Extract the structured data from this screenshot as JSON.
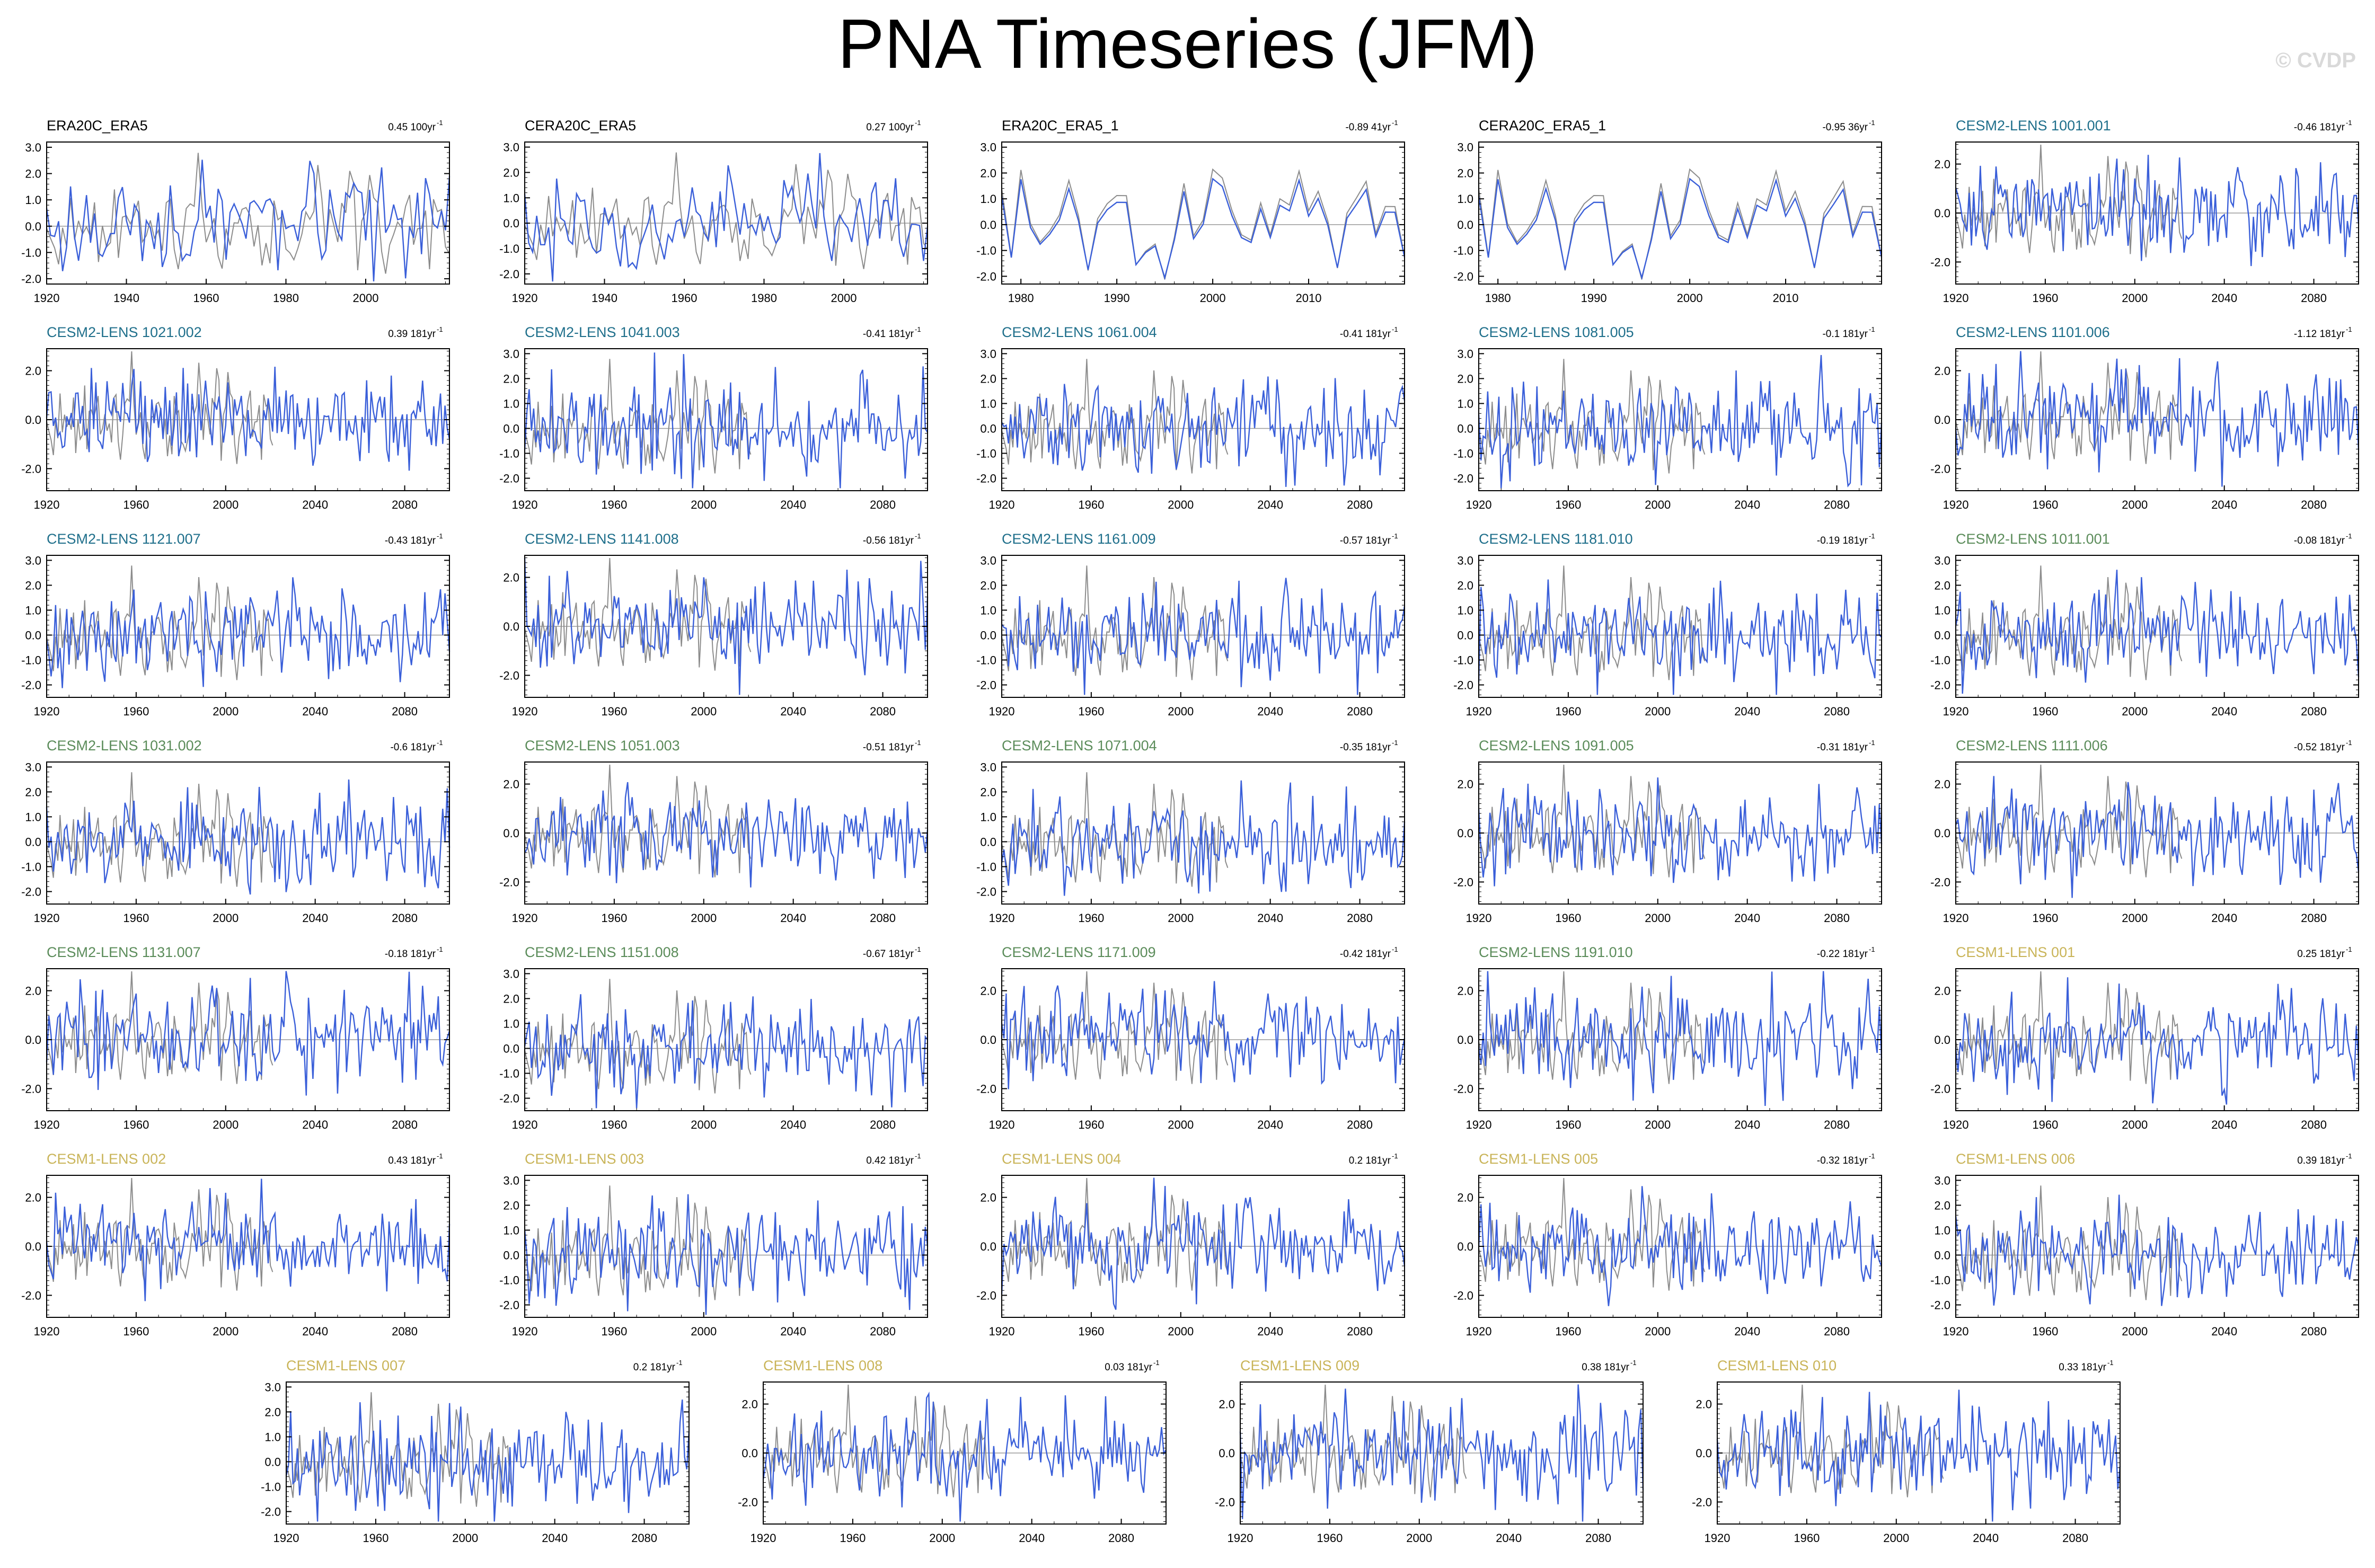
{
  "title": "PNA Timeseries (JFM)",
  "watermark": "© CVDP",
  "colors": {
    "observed": "#8c8c8c",
    "model": "#3a5fd9",
    "axis": "#000000",
    "zero_line": "#999999"
  },
  "chart_data": [
    {
      "type": "line",
      "title": "ERA20C_ERA5",
      "trend": "0.45 100yr",
      "title_color": "#000000",
      "xlim": [
        1920,
        2021
      ],
      "ylim": [
        -2.2,
        3.2
      ],
      "yticks": [
        -2.0,
        -1.0,
        0.0,
        1.0,
        2.0,
        3.0
      ],
      "xticks": [
        1920,
        1940,
        1960,
        1980,
        2000
      ],
      "series": []
    },
    {
      "type": "line",
      "title": "CERA20C_ERA5",
      "trend": "0.27 100yr",
      "title_color": "#000000",
      "xlim": [
        1920,
        2021
      ],
      "ylim": [
        -2.4,
        3.2
      ],
      "yticks": [
        -2.0,
        -1.0,
        0.0,
        1.0,
        2.0,
        3.0
      ],
      "xticks": [
        1920,
        1940,
        1960,
        1980,
        2000
      ],
      "series": []
    },
    {
      "type": "line",
      "title": "ERA20C_ERA5_1",
      "trend": "-0.89 41yr",
      "title_color": "#000000",
      "xlim": [
        1978,
        2020
      ],
      "ylim": [
        -2.3,
        3.2
      ],
      "yticks": [
        -2.0,
        -1.0,
        0.0,
        1.0,
        2.0,
        3.0
      ],
      "xticks": [
        1980,
        1990,
        2000,
        2010
      ],
      "series": []
    },
    {
      "type": "line",
      "title": "CERA20C_ERA5_1",
      "trend": "-0.95 36yr",
      "title_color": "#000000",
      "xlim": [
        1978,
        2020
      ],
      "ylim": [
        -2.3,
        3.2
      ],
      "yticks": [
        -2.0,
        -1.0,
        0.0,
        1.0,
        2.0,
        3.0
      ],
      "xticks": [
        1980,
        1990,
        2000,
        2010
      ],
      "series": []
    },
    {
      "type": "line",
      "title": "CESM2-LENS 1001.001",
      "trend": "-0.46 181yr",
      "title_color": "#1f6f8b",
      "xlim": [
        1920,
        2100
      ],
      "ylim": [
        -2.9,
        2.9
      ],
      "yticks": [
        -2.0,
        0.0,
        2.0
      ],
      "xticks": [
        1920,
        1960,
        2000,
        2040,
        2080
      ],
      "series": []
    },
    {
      "type": "line",
      "title": "CESM2-LENS 1021.002",
      "trend": "0.39 181yr",
      "title_color": "#1f6f8b",
      "xlim": [
        1920,
        2100
      ],
      "ylim": [
        -2.9,
        2.9
      ],
      "yticks": [
        -2.0,
        0.0,
        2.0
      ],
      "xticks": [
        1920,
        1960,
        2000,
        2040,
        2080
      ],
      "series": []
    },
    {
      "type": "line",
      "title": "CESM2-LENS 1041.003",
      "trend": "-0.41 181yr",
      "title_color": "#1f6f8b",
      "xlim": [
        1920,
        2100
      ],
      "ylim": [
        -2.5,
        3.2
      ],
      "yticks": [
        -2.0,
        -1.0,
        0.0,
        1.0,
        2.0,
        3.0
      ],
      "xticks": [
        1920,
        1960,
        2000,
        2040,
        2080
      ],
      "series": []
    },
    {
      "type": "line",
      "title": "CESM2-LENS 1061.004",
      "trend": "-0.41 181yr",
      "title_color": "#1f6f8b",
      "xlim": [
        1920,
        2100
      ],
      "ylim": [
        -2.5,
        3.2
      ],
      "yticks": [
        -2.0,
        -1.0,
        0.0,
        1.0,
        2.0,
        3.0
      ],
      "xticks": [
        1920,
        1960,
        2000,
        2040,
        2080
      ],
      "series": []
    },
    {
      "type": "line",
      "title": "CESM2-LENS 1081.005",
      "trend": "-0.1 181yr",
      "title_color": "#1f6f8b",
      "xlim": [
        1920,
        2100
      ],
      "ylim": [
        -2.5,
        3.2
      ],
      "yticks": [
        -2.0,
        -1.0,
        0.0,
        1.0,
        2.0,
        3.0
      ],
      "xticks": [
        1920,
        1960,
        2000,
        2040,
        2080
      ],
      "series": []
    },
    {
      "type": "line",
      "title": "CESM2-LENS 1101.006",
      "trend": "-1.12 181yr",
      "title_color": "#1f6f8b",
      "xlim": [
        1920,
        2100
      ],
      "ylim": [
        -2.9,
        2.9
      ],
      "yticks": [
        -2.0,
        0.0,
        2.0
      ],
      "xticks": [
        1920,
        1960,
        2000,
        2040,
        2080
      ],
      "series": []
    },
    {
      "type": "line",
      "title": "CESM2-LENS 1121.007",
      "trend": "-0.43 181yr",
      "title_color": "#1f6f8b",
      "xlim": [
        1920,
        2100
      ],
      "ylim": [
        -2.5,
        3.2
      ],
      "yticks": [
        -2.0,
        -1.0,
        0.0,
        1.0,
        2.0,
        3.0
      ],
      "xticks": [
        1920,
        1960,
        2000,
        2040,
        2080
      ],
      "series": []
    },
    {
      "type": "line",
      "title": "CESM2-LENS 1141.008",
      "trend": "-0.56 181yr",
      "title_color": "#1f6f8b",
      "xlim": [
        1920,
        2100
      ],
      "ylim": [
        -2.9,
        2.9
      ],
      "yticks": [
        -2.0,
        0.0,
        2.0
      ],
      "xticks": [
        1920,
        1960,
        2000,
        2040,
        2080
      ],
      "series": []
    },
    {
      "type": "line",
      "title": "CESM2-LENS 1161.009",
      "trend": "-0.57 181yr",
      "title_color": "#1f6f8b",
      "xlim": [
        1920,
        2100
      ],
      "ylim": [
        -2.5,
        3.2
      ],
      "yticks": [
        -2.0,
        -1.0,
        0.0,
        1.0,
        2.0,
        3.0
      ],
      "xticks": [
        1920,
        1960,
        2000,
        2040,
        2080
      ],
      "series": []
    },
    {
      "type": "line",
      "title": "CESM2-LENS 1181.010",
      "trend": "-0.19 181yr",
      "title_color": "#1f6f8b",
      "xlim": [
        1920,
        2100
      ],
      "ylim": [
        -2.5,
        3.2
      ],
      "yticks": [
        -2.0,
        -1.0,
        0.0,
        1.0,
        2.0,
        3.0
      ],
      "xticks": [
        1920,
        1960,
        2000,
        2040,
        2080
      ],
      "series": []
    },
    {
      "type": "line",
      "title": "CESM2-LENS 1011.001",
      "trend": "-0.08 181yr",
      "title_color": "#5b8c5a",
      "xlim": [
        1920,
        2100
      ],
      "ylim": [
        -2.5,
        3.2
      ],
      "yticks": [
        -2.0,
        -1.0,
        0.0,
        1.0,
        2.0,
        3.0
      ],
      "xticks": [
        1920,
        1960,
        2000,
        2040,
        2080
      ],
      "series": []
    },
    {
      "type": "line",
      "title": "CESM2-LENS 1031.002",
      "trend": "-0.6 181yr",
      "title_color": "#5b8c5a",
      "xlim": [
        1920,
        2100
      ],
      "ylim": [
        -2.5,
        3.2
      ],
      "yticks": [
        -2.0,
        -1.0,
        0.0,
        1.0,
        2.0,
        3.0
      ],
      "xticks": [
        1920,
        1960,
        2000,
        2040,
        2080
      ],
      "series": []
    },
    {
      "type": "line",
      "title": "CESM2-LENS 1051.003",
      "trend": "-0.51 181yr",
      "title_color": "#5b8c5a",
      "xlim": [
        1920,
        2100
      ],
      "ylim": [
        -2.9,
        2.9
      ],
      "yticks": [
        -2.0,
        0.0,
        2.0
      ],
      "xticks": [
        1920,
        1960,
        2000,
        2040,
        2080
      ],
      "series": []
    },
    {
      "type": "line",
      "title": "CESM2-LENS 1071.004",
      "trend": "-0.35 181yr",
      "title_color": "#5b8c5a",
      "xlim": [
        1920,
        2100
      ],
      "ylim": [
        -2.5,
        3.2
      ],
      "yticks": [
        -2.0,
        -1.0,
        0.0,
        1.0,
        2.0,
        3.0
      ],
      "xticks": [
        1920,
        1960,
        2000,
        2040,
        2080
      ],
      "series": []
    },
    {
      "type": "line",
      "title": "CESM2-LENS 1091.005",
      "trend": "-0.31 181yr",
      "title_color": "#5b8c5a",
      "xlim": [
        1920,
        2100
      ],
      "ylim": [
        -2.9,
        2.9
      ],
      "yticks": [
        -2.0,
        0.0,
        2.0
      ],
      "xticks": [
        1920,
        1960,
        2000,
        2040,
        2080
      ],
      "series": []
    },
    {
      "type": "line",
      "title": "CESM2-LENS 1111.006",
      "trend": "-0.52 181yr",
      "title_color": "#5b8c5a",
      "xlim": [
        1920,
        2100
      ],
      "ylim": [
        -2.9,
        2.9
      ],
      "yticks": [
        -2.0,
        0.0,
        2.0
      ],
      "xticks": [
        1920,
        1960,
        2000,
        2040,
        2080
      ],
      "series": []
    },
    {
      "type": "line",
      "title": "CESM2-LENS 1131.007",
      "trend": "-0.18 181yr",
      "title_color": "#5b8c5a",
      "xlim": [
        1920,
        2100
      ],
      "ylim": [
        -2.9,
        2.9
      ],
      "yticks": [
        -2.0,
        0.0,
        2.0
      ],
      "xticks": [
        1920,
        1960,
        2000,
        2040,
        2080
      ],
      "series": []
    },
    {
      "type": "line",
      "title": "CESM2-LENS 1151.008",
      "trend": "-0.67 181yr",
      "title_color": "#5b8c5a",
      "xlim": [
        1920,
        2100
      ],
      "ylim": [
        -2.5,
        3.2
      ],
      "yticks": [
        -2.0,
        -1.0,
        0.0,
        1.0,
        2.0,
        3.0
      ],
      "xticks": [
        1920,
        1960,
        2000,
        2040,
        2080
      ],
      "series": []
    },
    {
      "type": "line",
      "title": "CESM2-LENS 1171.009",
      "trend": "-0.42 181yr",
      "title_color": "#5b8c5a",
      "xlim": [
        1920,
        2100
      ],
      "ylim": [
        -2.9,
        2.9
      ],
      "yticks": [
        -2.0,
        0.0,
        2.0
      ],
      "xticks": [
        1920,
        1960,
        2000,
        2040,
        2080
      ],
      "series": []
    },
    {
      "type": "line",
      "title": "CESM2-LENS 1191.010",
      "trend": "-0.22 181yr",
      "title_color": "#5b8c5a",
      "xlim": [
        1920,
        2100
      ],
      "ylim": [
        -2.9,
        2.9
      ],
      "yticks": [
        -2.0,
        0.0,
        2.0
      ],
      "xticks": [
        1920,
        1960,
        2000,
        2040,
        2080
      ],
      "series": []
    },
    {
      "type": "line",
      "title": "CESM1-LENS 001",
      "trend": "0.25 181yr",
      "title_color": "#c9b458",
      "xlim": [
        1920,
        2100
      ],
      "ylim": [
        -2.9,
        2.9
      ],
      "yticks": [
        -2.0,
        0.0,
        2.0
      ],
      "xticks": [
        1920,
        1960,
        2000,
        2040,
        2080
      ],
      "series": []
    },
    {
      "type": "line",
      "title": "CESM1-LENS 002",
      "trend": "0.43 181yr",
      "title_color": "#c9b458",
      "xlim": [
        1920,
        2100
      ],
      "ylim": [
        -2.9,
        2.9
      ],
      "yticks": [
        -2.0,
        0.0,
        2.0
      ],
      "xticks": [
        1920,
        1960,
        2000,
        2040,
        2080
      ],
      "series": []
    },
    {
      "type": "line",
      "title": "CESM1-LENS 003",
      "trend": "0.42 181yr",
      "title_color": "#c9b458",
      "xlim": [
        1920,
        2100
      ],
      "ylim": [
        -2.5,
        3.2
      ],
      "yticks": [
        -2.0,
        -1.0,
        0.0,
        1.0,
        2.0,
        3.0
      ],
      "xticks": [
        1920,
        1960,
        2000,
        2040,
        2080
      ],
      "series": []
    },
    {
      "type": "line",
      "title": "CESM1-LENS 004",
      "trend": "0.2 181yr",
      "title_color": "#c9b458",
      "xlim": [
        1920,
        2100
      ],
      "ylim": [
        -2.9,
        2.9
      ],
      "yticks": [
        -2.0,
        0.0,
        2.0
      ],
      "xticks": [
        1920,
        1960,
        2000,
        2040,
        2080
      ],
      "series": []
    },
    {
      "type": "line",
      "title": "CESM1-LENS 005",
      "trend": "-0.32 181yr",
      "title_color": "#c9b458",
      "xlim": [
        1920,
        2100
      ],
      "ylim": [
        -2.9,
        2.9
      ],
      "yticks": [
        -2.0,
        0.0,
        2.0
      ],
      "xticks": [
        1920,
        1960,
        2000,
        2040,
        2080
      ],
      "series": []
    },
    {
      "type": "line",
      "title": "CESM1-LENS 006",
      "trend": "0.39 181yr",
      "title_color": "#c9b458",
      "xlim": [
        1920,
        2100
      ],
      "ylim": [
        -2.5,
        3.2
      ],
      "yticks": [
        -2.0,
        -1.0,
        0.0,
        1.0,
        2.0,
        3.0
      ],
      "xticks": [
        1920,
        1960,
        2000,
        2040,
        2080
      ],
      "series": []
    },
    {
      "type": "line",
      "title": "CESM1-LENS 007",
      "trend": "0.2 181yr",
      "title_color": "#c9b458",
      "xlim": [
        1920,
        2100
      ],
      "ylim": [
        -2.5,
        3.2
      ],
      "yticks": [
        -2.0,
        -1.0,
        0.0,
        1.0,
        2.0,
        3.0
      ],
      "xticks": [
        1920,
        1960,
        2000,
        2040,
        2080
      ],
      "series": []
    },
    {
      "type": "line",
      "title": "CESM1-LENS 008",
      "trend": "0.03 181yr",
      "title_color": "#c9b458",
      "xlim": [
        1920,
        2100
      ],
      "ylim": [
        -2.9,
        2.9
      ],
      "yticks": [
        -2.0,
        0.0,
        2.0
      ],
      "xticks": [
        1920,
        1960,
        2000,
        2040,
        2080
      ],
      "series": []
    },
    {
      "type": "line",
      "title": "CESM1-LENS 009",
      "trend": "0.38 181yr",
      "title_color": "#c9b458",
      "xlim": [
        1920,
        2100
      ],
      "ylim": [
        -2.9,
        2.9
      ],
      "yticks": [
        -2.0,
        0.0,
        2.0
      ],
      "xticks": [
        1920,
        1960,
        2000,
        2040,
        2080
      ],
      "series": []
    },
    {
      "type": "line",
      "title": "CESM1-LENS 010",
      "trend": "0.33 181yr",
      "title_color": "#c9b458",
      "xlim": [
        1920,
        2100
      ],
      "ylim": [
        -2.9,
        2.9
      ],
      "yticks": [
        -2.0,
        0.0,
        2.0
      ],
      "xticks": [
        1920,
        1960,
        2000,
        2040,
        2080
      ],
      "series": []
    }
  ]
}
